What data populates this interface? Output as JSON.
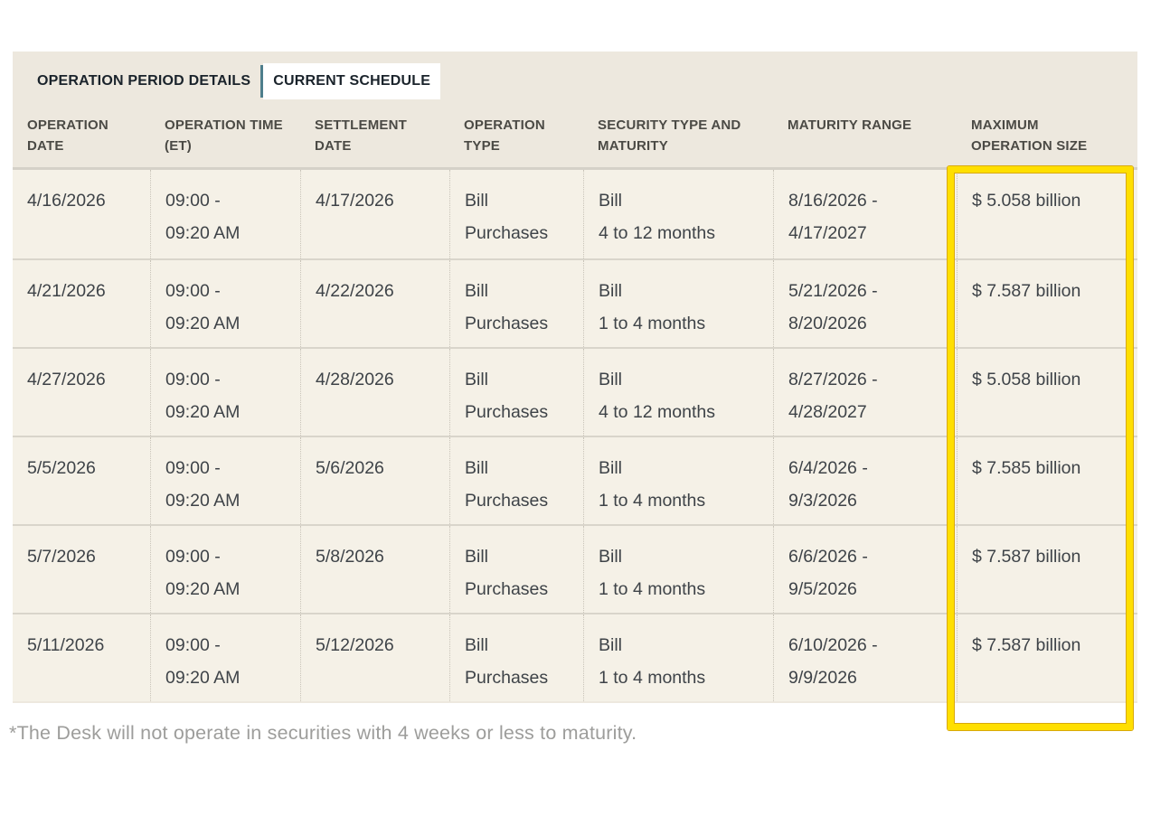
{
  "tabs": [
    {
      "label": "OPERATION PERIOD DETAILS",
      "active": false
    },
    {
      "label": "CURRENT SCHEDULE",
      "active": true
    }
  ],
  "table": {
    "columns": [
      "OPERATION\nDATE",
      "OPERATION TIME\n(ET)",
      "SETTLEMENT\nDATE",
      "OPERATION\nTYPE",
      "SECURITY TYPE AND\nMATURITY",
      "MATURITY RANGE",
      "MAXIMUM\nOPERATION SIZE"
    ],
    "rows": [
      {
        "cells": [
          "4/16/2026",
          "09:00 -\n09:20 AM",
          "4/17/2026",
          "Bill\nPurchases",
          "Bill\n4 to 12 months",
          "8/16/2026 -\n4/17/2027",
          "$ 5.058 billion"
        ]
      },
      {
        "cells": [
          "4/21/2026",
          "09:00 -\n09:20 AM",
          "4/22/2026",
          "Bill\nPurchases",
          "Bill\n1 to 4 months",
          "5/21/2026 -\n8/20/2026",
          "$ 7.587 billion"
        ]
      },
      {
        "cells": [
          "4/27/2026",
          "09:00 -\n09:20 AM",
          "4/28/2026",
          "Bill\nPurchases",
          "Bill\n4 to 12 months",
          "8/27/2026 -\n4/28/2027",
          "$ 5.058 billion"
        ]
      },
      {
        "cells": [
          "5/5/2026",
          "09:00 -\n09:20 AM",
          "5/6/2026",
          "Bill\nPurchases",
          "Bill\n1 to 4 months",
          "6/4/2026 -\n9/3/2026",
          "$ 7.585 billion"
        ]
      },
      {
        "cells": [
          "5/7/2026",
          "09:00 -\n09:20 AM",
          "5/8/2026",
          "Bill\nPurchases",
          "Bill\n1 to 4 months",
          "6/6/2026 -\n9/5/2026",
          "$ 7.587 billion"
        ]
      },
      {
        "cells": [
          "5/11/2026",
          "09:00 -\n09:20 AM",
          "5/12/2026",
          "Bill\nPurchases",
          "Bill\n1 to 4 months",
          "6/10/2026 -\n9/9/2026",
          "$ 7.587 billion"
        ]
      }
    ]
  },
  "footnote": "*The Desk will not operate in securities with 4 weeks or less to maturity.",
  "colors": {
    "highlight_border": "#FFDF00",
    "tab_divider": "#4E7E8C",
    "panel_background": "#EDE8DE",
    "row_background": "#F5F1E7"
  }
}
